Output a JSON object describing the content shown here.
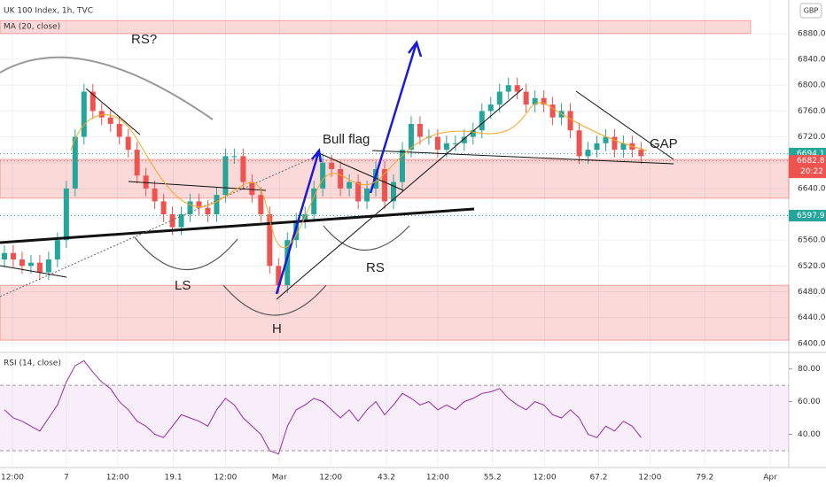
{
  "chart_data": {
    "type": "candlestick",
    "title": "UK 100 Index, 1h, TVC",
    "indicator_label": "MA (20, close)",
    "currency": "GBP",
    "colors": {
      "up": "#26a69a",
      "down": "#ef5350"
    },
    "xlim": [
      -0.5,
      88.7
    ],
    "xticks": [
      {
        "value": 0.9,
        "label": "12:00"
      },
      7,
      {
        "value": 12.8,
        "label": "12:00"
      },
      19.1,
      {
        "value": 25,
        "label": "12:00"
      },
      {
        "value": 31.1,
        "label": "Mar"
      },
      {
        "value": 36.9,
        "label": "12:00"
      },
      43.2,
      {
        "value": 49,
        "label": "12:00"
      },
      55.2,
      {
        "value": 61.1,
        "label": "12:00"
      },
      67.2,
      {
        "value": 73,
        "label": "12:00"
      },
      79.2,
      {
        "value": 86.6,
        "label": "Apr"
      }
    ],
    "ylim": [
      6386,
      6932
    ],
    "yticks": [
      {
        "value": 6400,
        "label": "6400.00"
      },
      {
        "value": 6440,
        "label": "6440.00"
      },
      {
        "value": 6480,
        "label": "6480.00"
      },
      {
        "value": 6520,
        "label": "6520.00"
      },
      {
        "value": 6560,
        "label": "6560.00"
      },
      {
        "value": 6600,
        "label": "6600.00"
      },
      {
        "value": 6640,
        "label": "6640.00"
      },
      {
        "value": 6680,
        "label": "6680.00"
      },
      {
        "value": 6720,
        "label": "6720.00"
      },
      {
        "value": 6760,
        "label": "6760.00"
      },
      {
        "value": 6800,
        "label": "6800.00"
      },
      {
        "value": 6840,
        "label": "6840.00"
      },
      {
        "value": 6880,
        "label": "6880.00"
      }
    ],
    "open": [
      6530,
      6540,
      6530,
      6520,
      6525,
      6510,
      6530,
      6560,
      6640,
      6720,
      6790,
      6760,
      6750,
      6740,
      6720,
      6700,
      6660,
      6640,
      6620,
      6600,
      6580,
      6600,
      6620,
      6610,
      6600,
      6630,
      6690,
      6690,
      6650,
      6630,
      6600,
      6520,
      6490,
      6560,
      6590,
      6600,
      6640,
      6680,
      6670,
      6640,
      6650,
      6620,
      6640,
      6670,
      6620,
      6650,
      6700,
      6740,
      6720,
      6720,
      6700,
      6710,
      6710,
      6720,
      6730,
      6760,
      6770,
      6790,
      6800,
      6790,
      6770,
      6780,
      6770,
      6750,
      6760,
      6730,
      6690,
      6700,
      6710,
      6720,
      6700,
      6710,
      6700
    ],
    "high": [
      6552,
      6552,
      6542,
      6537,
      6537,
      6542,
      6572,
      6652,
      6732,
      6802,
      6802,
      6772,
      6762,
      6752,
      6732,
      6712,
      6672,
      6652,
      6632,
      6612,
      6612,
      6632,
      6632,
      6622,
      6642,
      6702,
      6702,
      6702,
      6662,
      6642,
      6612,
      6532,
      6572,
      6602,
      6612,
      6652,
      6692,
      6692,
      6682,
      6662,
      6662,
      6652,
      6682,
      6682,
      6662,
      6712,
      6752,
      6752,
      6732,
      6732,
      6722,
      6722,
      6732,
      6742,
      6772,
      6782,
      6802,
      6812,
      6812,
      6802,
      6792,
      6792,
      6782,
      6772,
      6772,
      6742,
      6712,
      6722,
      6732,
      6732,
      6722,
      6722,
      6712
    ],
    "low": [
      6518,
      6518,
      6508,
      6508,
      6498,
      6498,
      6518,
      6548,
      6628,
      6708,
      6748,
      6738,
      6728,
      6708,
      6688,
      6648,
      6628,
      6608,
      6588,
      6568,
      6568,
      6588,
      6598,
      6588,
      6588,
      6618,
      6678,
      6638,
      6618,
      6588,
      6508,
      6478,
      6478,
      6548,
      6578,
      6588,
      6628,
      6658,
      6628,
      6628,
      6608,
      6608,
      6628,
      6608,
      6608,
      6638,
      6688,
      6708,
      6708,
      6688,
      6688,
      6698,
      6698,
      6708,
      6718,
      6748,
      6758,
      6778,
      6778,
      6758,
      6758,
      6758,
      6738,
      6738,
      6718,
      6678,
      6678,
      6688,
      6698,
      6688,
      6688,
      6688,
      6678
    ],
    "close": [
      6540,
      6530,
      6520,
      6525,
      6510,
      6530,
      6560,
      6640,
      6720,
      6790,
      6760,
      6750,
      6740,
      6720,
      6700,
      6660,
      6640,
      6620,
      6600,
      6580,
      6600,
      6620,
      6610,
      6600,
      6630,
      6690,
      6690,
      6650,
      6630,
      6600,
      6520,
      6490,
      6560,
      6590,
      6600,
      6640,
      6680,
      6670,
      6640,
      6650,
      6620,
      6640,
      6670,
      6620,
      6650,
      6700,
      6740,
      6720,
      6720,
      6700,
      6710,
      6710,
      6720,
      6730,
      6760,
      6770,
      6790,
      6800,
      6790,
      6770,
      6780,
      6770,
      6750,
      6760,
      6730,
      6690,
      6700,
      6710,
      6720,
      6700,
      6710,
      6700,
      6690
    ],
    "zones": [
      [
        6880,
        6900
      ],
      [
        6625,
        6685
      ],
      [
        6405,
        6490
      ]
    ],
    "price_labels": [
      {
        "value": 6694.1,
        "color": "#26a69a"
      },
      {
        "value": 6682.8,
        "color": "#ef5350",
        "countdown": "20:22"
      },
      {
        "value": 6597.9,
        "color": "#26a69a"
      }
    ],
    "annotations": [
      "RS?",
      "Bull flag",
      "GAP",
      "LS",
      "H",
      "RS"
    ],
    "rsi": {
      "title": "RSI (14, close)",
      "color": "#9c27b0",
      "ylim": [
        19.7,
        90.1
      ],
      "band": [
        30,
        70
      ],
      "yticks": [
        {
          "value": 40,
          "label": "40.00"
        },
        {
          "value": 60,
          "label": "60.00"
        },
        {
          "value": 80,
          "label": "80.00"
        }
      ],
      "values": [
        55,
        50,
        48,
        45,
        42,
        50,
        58,
        72,
        82,
        85,
        78,
        72,
        68,
        60,
        55,
        48,
        45,
        40,
        38,
        45,
        52,
        50,
        48,
        45,
        55,
        62,
        58,
        50,
        45,
        40,
        30,
        28,
        45,
        55,
        58,
        62,
        60,
        55,
        50,
        55,
        48,
        55,
        60,
        52,
        58,
        65,
        62,
        58,
        60,
        55,
        58,
        55,
        60,
        62,
        65,
        66,
        68,
        62,
        58,
        55,
        60,
        58,
        52,
        50,
        55,
        50,
        40,
        38,
        45,
        42,
        48,
        45,
        38
      ]
    }
  }
}
